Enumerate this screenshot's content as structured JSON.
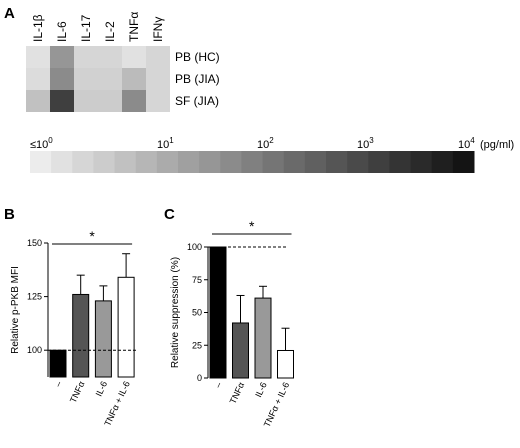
{
  "panels": {
    "a": "A",
    "b": "B",
    "c": "C"
  },
  "chart_data": [
    {
      "panel": "A",
      "type": "heatmap",
      "columns": [
        "IL-1β",
        "IL-6",
        "IL-17",
        "IL-2",
        "TNFα",
        "IFNγ"
      ],
      "rows": [
        "PB (HC)",
        "PB (JIA)",
        "SF (JIA)"
      ],
      "values_log10_pg_ml": [
        [
          0.2,
          1.6,
          0.4,
          0.4,
          0.2,
          0.4
        ],
        [
          0.3,
          1.8,
          0.5,
          0.5,
          0.9,
          0.4
        ],
        [
          0.8,
          3.2,
          0.6,
          0.6,
          1.8,
          0.4
        ]
      ],
      "scale": {
        "labels": [
          "≤10",
          "10",
          "10",
          "10",
          "10",
          "(pg/ml)"
        ],
        "exponents": [
          "0",
          "1",
          "2",
          "3",
          "4",
          ""
        ],
        "min_log10": 0,
        "max_log10": 4,
        "steps": 21
      }
    },
    {
      "panel": "B",
      "type": "bar",
      "categories": [
        "–",
        "TNFα",
        "IL-6",
        "TNFα + IL-6"
      ],
      "values": [
        100,
        126,
        123,
        134
      ],
      "errors": [
        0,
        9,
        7,
        11
      ],
      "colors": [
        "#000000",
        "#555555",
        "#999999",
        "#ffffff"
      ],
      "ylabel": "Relative p-PKB MFI",
      "yticks": [
        100,
        125,
        150
      ],
      "ylim": [
        87.5,
        150
      ],
      "reference_line": 100,
      "significance": {
        "label": "*",
        "from": 0,
        "to": 3
      }
    },
    {
      "panel": "C",
      "type": "bar",
      "categories": [
        "–",
        "TNFα",
        "IL-6",
        "TNFα + IL-6"
      ],
      "values": [
        100,
        42,
        61,
        21
      ],
      "errors": [
        0,
        21,
        9,
        17
      ],
      "colors": [
        "#000000",
        "#555555",
        "#999999",
        "#ffffff"
      ],
      "ylabel": "Relative suppression (%)",
      "yticks": [
        0,
        25,
        50,
        75,
        100
      ],
      "ylim": [
        0,
        100
      ],
      "reference_line": 100,
      "significance": {
        "label": "*",
        "from": 0,
        "to": 3
      }
    }
  ]
}
